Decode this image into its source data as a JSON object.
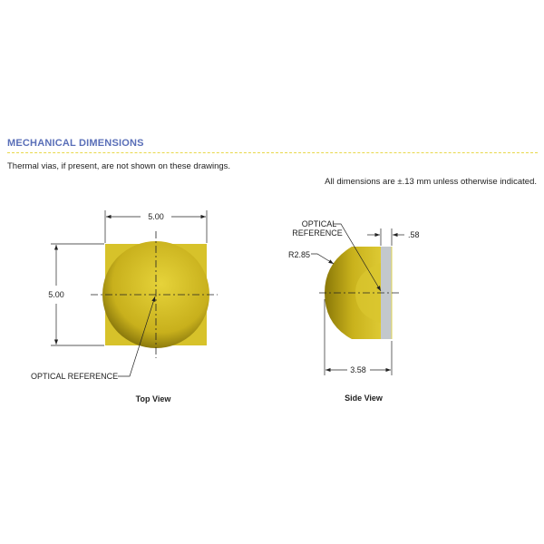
{
  "section_title": "MECHANICAL DIMENSIONS",
  "note_thermal": "Thermal vias, if present, are not shown on these drawings.",
  "note_tolerance": "All dimensions are ±.13 mm unless otherwise indicated.",
  "top_view": {
    "caption": "Top View",
    "width_dim": "5.00",
    "height_dim": "5.00",
    "optical_reference": "OPTICAL REFERENCE"
  },
  "side_view": {
    "caption": "Side View",
    "optical_reference_line1": "OPTICAL",
    "optical_reference_line2": "REFERENCE",
    "radius_dim": "R2.85",
    "thickness_dim": ".58",
    "depth_dim": "3.58"
  },
  "colors": {
    "title": "#5a6fb8",
    "lens": "#c9b21c",
    "substrate": "#c3c8cc"
  }
}
